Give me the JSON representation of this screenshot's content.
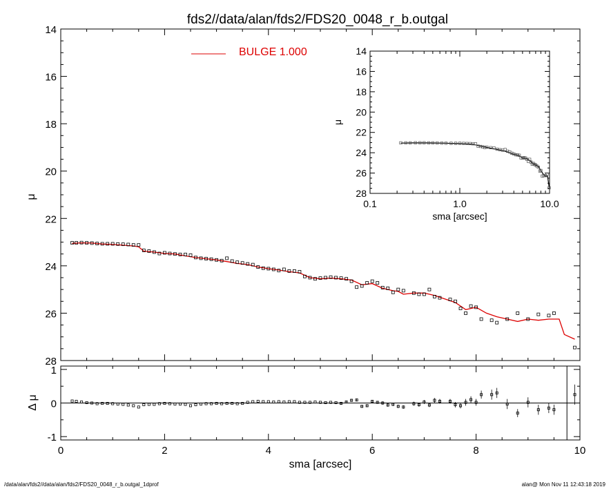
{
  "title": "fds2//data/alan/fds2/FDS20_0048_r_b.outgal",
  "footer": {
    "left": "/data/alan/fds2//data/alan/fds2/FDS20_0048_r_b.outgal_1dprof",
    "right": "alan@  Mon Nov 11 12:43:18 2019"
  },
  "colors": {
    "model": "#dd0000",
    "data": "#000000",
    "residual_line": "#000000"
  },
  "chart_data": [
    {
      "id": "main-profile",
      "type": "line",
      "ylabel": "μ",
      "xlim": [
        0,
        10
      ],
      "ylim": [
        28,
        14
      ],
      "y_inverted": true,
      "xticks": [
        0,
        2,
        4,
        6,
        8,
        10
      ],
      "yticks": [
        14,
        16,
        18,
        20,
        22,
        24,
        26,
        28
      ],
      "legend": {
        "label": "BULGE  1.000",
        "placement": "top-left",
        "color": "#dd0000"
      },
      "series": [
        {
          "name": "BULGE  1.000",
          "color": "#dd0000",
          "x": [
            0.22,
            0.4,
            0.6,
            0.8,
            1.0,
            1.2,
            1.4,
            1.5,
            1.6,
            1.8,
            2.0,
            2.2,
            2.4,
            2.6,
            2.8,
            3.0,
            3.2,
            3.4,
            3.6,
            3.8,
            4.0,
            4.2,
            4.4,
            4.6,
            4.8,
            5.0,
            5.2,
            5.4,
            5.6,
            5.8,
            6.0,
            6.2,
            6.4,
            6.5,
            6.6,
            6.8,
            7.0,
            7.2,
            7.4,
            7.6,
            7.8,
            8.0,
            8.2,
            8.4,
            8.6,
            8.8,
            9.0,
            9.2,
            9.4,
            9.6,
            9.7,
            9.9
          ],
          "y": [
            23.05,
            23.03,
            23.04,
            23.08,
            23.1,
            23.13,
            23.16,
            23.2,
            23.38,
            23.42,
            23.48,
            23.5,
            23.58,
            23.65,
            23.7,
            23.75,
            23.82,
            23.9,
            23.95,
            24.05,
            24.12,
            24.18,
            24.25,
            24.3,
            24.5,
            24.55,
            24.52,
            24.55,
            24.6,
            24.8,
            24.75,
            24.95,
            25.05,
            25.08,
            25.2,
            25.15,
            25.15,
            25.25,
            25.4,
            25.55,
            25.85,
            25.75,
            26.0,
            26.15,
            26.25,
            26.35,
            26.25,
            26.3,
            26.25,
            26.25,
            26.9,
            27.1
          ]
        },
        {
          "name": "",
          "color": "#000000",
          "marker": "square",
          "x": [
            0.22,
            0.3,
            0.4,
            0.5,
            0.6,
            0.7,
            0.8,
            0.9,
            1.0,
            1.1,
            1.2,
            1.3,
            1.4,
            1.5,
            1.6,
            1.7,
            1.8,
            1.9,
            2.0,
            2.1,
            2.2,
            2.3,
            2.4,
            2.5,
            2.6,
            2.7,
            2.8,
            2.9,
            3.0,
            3.1,
            3.2,
            3.3,
            3.4,
            3.5,
            3.6,
            3.7,
            3.8,
            3.9,
            4.0,
            4.1,
            4.2,
            4.3,
            4.4,
            4.5,
            4.6,
            4.7,
            4.8,
            4.9,
            5.0,
            5.1,
            5.2,
            5.3,
            5.4,
            5.5,
            5.6,
            5.7,
            5.8,
            5.9,
            6.0,
            6.1,
            6.2,
            6.3,
            6.4,
            6.5,
            6.6,
            6.8,
            6.9,
            7.0,
            7.1,
            7.2,
            7.3,
            7.5,
            7.6,
            7.7,
            7.8,
            7.9,
            8.0,
            8.1,
            8.3,
            8.4,
            8.6,
            8.8,
            9.0,
            9.2,
            9.4,
            9.5,
            9.9
          ],
          "y": [
            23.03,
            23.03,
            23.02,
            23.03,
            23.04,
            23.06,
            23.07,
            23.07,
            23.07,
            23.08,
            23.09,
            23.1,
            23.12,
            23.12,
            23.35,
            23.38,
            23.42,
            23.48,
            23.45,
            23.48,
            23.5,
            23.52,
            23.52,
            23.55,
            23.65,
            23.68,
            23.7,
            23.72,
            23.75,
            23.78,
            23.68,
            23.8,
            23.85,
            23.88,
            23.92,
            23.95,
            24.05,
            24.1,
            24.12,
            24.15,
            24.2,
            24.15,
            24.22,
            24.22,
            24.25,
            24.45,
            24.5,
            24.55,
            24.52,
            24.5,
            24.48,
            24.5,
            24.52,
            24.55,
            24.65,
            24.9,
            24.85,
            24.72,
            24.65,
            24.72,
            24.92,
            24.95,
            25.12,
            25.0,
            25.05,
            25.15,
            25.2,
            25.2,
            25.0,
            25.3,
            25.35,
            25.42,
            25.5,
            25.8,
            26.0,
            25.7,
            25.75,
            26.25,
            26.3,
            26.4,
            26.25,
            26.0,
            26.25,
            26.05,
            26.1,
            26.0,
            27.45
          ]
        }
      ]
    },
    {
      "id": "residual",
      "type": "scatter",
      "ylabel": "Δ μ",
      "xlabel": "sma [arcsec]",
      "xlim": [
        0,
        10
      ],
      "ylim": [
        -1.1,
        1.1
      ],
      "xticks": [
        0,
        2,
        4,
        6,
        8,
        10
      ],
      "yticks": [
        -1,
        0,
        1
      ],
      "vline_x": 9.75,
      "series": [
        {
          "name": "",
          "color": "#000000",
          "marker": "square",
          "x": [
            0.22,
            0.3,
            0.4,
            0.5,
            0.6,
            0.7,
            0.8,
            0.9,
            1.0,
            1.1,
            1.2,
            1.3,
            1.4,
            1.5,
            1.6,
            1.7,
            1.8,
            1.9,
            2.0,
            2.1,
            2.2,
            2.3,
            2.4,
            2.5,
            2.6,
            2.7,
            2.8,
            2.9,
            3.0,
            3.1,
            3.2,
            3.3,
            3.4,
            3.5,
            3.6,
            3.7,
            3.8,
            3.9,
            4.0,
            4.1,
            4.2,
            4.3,
            4.4,
            4.5,
            4.6,
            4.7,
            4.8,
            4.9,
            5.0,
            5.1,
            5.2,
            5.3,
            5.4,
            5.5,
            5.6,
            5.7,
            5.8,
            5.9,
            6.0,
            6.1,
            6.2,
            6.3,
            6.4,
            6.5,
            6.6,
            6.8,
            6.9,
            7.0,
            7.1,
            7.2,
            7.3,
            7.5,
            7.6,
            7.7,
            7.8,
            7.9,
            8.0,
            8.1,
            8.3,
            8.4,
            8.6,
            8.8,
            9.0,
            9.2,
            9.4,
            9.5,
            9.9
          ],
          "y": [
            0.06,
            0.05,
            0.03,
            0.01,
            0.0,
            -0.02,
            -0.01,
            -0.01,
            -0.02,
            -0.03,
            -0.04,
            -0.06,
            -0.08,
            -0.12,
            -0.05,
            -0.04,
            -0.04,
            -0.02,
            -0.01,
            -0.02,
            -0.03,
            -0.03,
            -0.04,
            -0.08,
            -0.05,
            -0.03,
            -0.02,
            -0.02,
            -0.01,
            -0.02,
            -0.01,
            -0.01,
            -0.02,
            -0.01,
            0.02,
            0.04,
            0.05,
            0.04,
            0.04,
            0.03,
            0.04,
            0.03,
            0.04,
            0.04,
            0.02,
            0.02,
            0.02,
            0.03,
            0.02,
            0.01,
            0.02,
            0.01,
            -0.01,
            0.03,
            0.08,
            0.09,
            -0.1,
            -0.08,
            0.05,
            0.02,
            0.0,
            -0.06,
            -0.04,
            -0.1,
            -0.12,
            -0.02,
            -0.05,
            0.03,
            -0.06,
            0.08,
            0.05,
            0.05,
            -0.05,
            -0.08,
            0.02,
            0.1,
            0.02,
            0.25,
            0.25,
            0.3,
            -0.03,
            -0.3,
            0.02,
            -0.2,
            -0.15,
            -0.2,
            0.25
          ],
          "err": [
            0.02,
            0.02,
            0.02,
            0.02,
            0.02,
            0.02,
            0.02,
            0.02,
            0.02,
            0.02,
            0.02,
            0.02,
            0.02,
            0.02,
            0.02,
            0.02,
            0.02,
            0.02,
            0.02,
            0.02,
            0.02,
            0.02,
            0.02,
            0.02,
            0.02,
            0.02,
            0.02,
            0.02,
            0.02,
            0.02,
            0.02,
            0.02,
            0.02,
            0.02,
            0.02,
            0.02,
            0.02,
            0.02,
            0.03,
            0.03,
            0.03,
            0.03,
            0.03,
            0.03,
            0.03,
            0.03,
            0.03,
            0.03,
            0.03,
            0.03,
            0.03,
            0.03,
            0.04,
            0.04,
            0.04,
            0.04,
            0.04,
            0.04,
            0.04,
            0.04,
            0.05,
            0.05,
            0.05,
            0.05,
            0.05,
            0.06,
            0.06,
            0.06,
            0.06,
            0.07,
            0.07,
            0.07,
            0.08,
            0.08,
            0.1,
            0.1,
            0.1,
            0.12,
            0.15,
            0.15,
            0.15,
            0.12,
            0.15,
            0.15,
            0.15,
            0.15,
            0.3
          ]
        }
      ]
    },
    {
      "id": "inset-log",
      "type": "line",
      "ylabel": "μ",
      "xlabel": "sma [arcsec]",
      "x_scale": "log",
      "xlim": [
        0.1,
        10.0
      ],
      "ylim": [
        28,
        14
      ],
      "y_inverted": true,
      "xticks": [
        0.1,
        1.0,
        10.0
      ],
      "xtick_labels": [
        "0.1",
        "1.0",
        "10.0"
      ],
      "yticks": [
        14,
        16,
        18,
        20,
        22,
        24,
        26,
        28
      ],
      "series": [
        {
          "name": "",
          "color": "#000000",
          "x": [
            0.22,
            0.3,
            0.4,
            0.5,
            0.6,
            0.7,
            0.8,
            1.0,
            1.2,
            1.4,
            1.6,
            1.8,
            2.0,
            2.3,
            2.6,
            3.0,
            3.4,
            3.8,
            4.2,
            4.6,
            5.0,
            5.5,
            6.0,
            6.5,
            7.0,
            7.5,
            8.0,
            8.5,
            9.0,
            9.5,
            9.9
          ],
          "y": [
            23.05,
            23.03,
            23.03,
            23.04,
            23.05,
            23.06,
            23.08,
            23.1,
            23.13,
            23.16,
            23.3,
            23.4,
            23.48,
            23.58,
            23.68,
            23.78,
            23.92,
            24.1,
            24.2,
            24.3,
            24.52,
            24.55,
            24.75,
            25.05,
            25.2,
            25.35,
            25.75,
            26.1,
            26.3,
            26.3,
            27.4
          ]
        },
        {
          "name": "",
          "color": "#000000",
          "marker": "square",
          "x": [
            0.22,
            0.25,
            0.28,
            0.32,
            0.36,
            0.4,
            0.45,
            0.5,
            0.56,
            0.63,
            0.7,
            0.8,
            0.9,
            1.0,
            1.1,
            1.2,
            1.3,
            1.4,
            1.5,
            1.6,
            1.7,
            1.8,
            1.9,
            2.0,
            2.2,
            2.4,
            2.6,
            2.8,
            3.0,
            3.2,
            3.4,
            3.6,
            3.8,
            4.0,
            4.2,
            4.4,
            4.6,
            4.8,
            5.0,
            5.2,
            5.4,
            5.6,
            5.8,
            6.0,
            6.2,
            6.4,
            6.6,
            6.8,
            7.0,
            7.2,
            7.5,
            7.8,
            8.0,
            8.3,
            8.6,
            9.0,
            9.4,
            9.9
          ],
          "y": [
            23.03,
            23.03,
            23.03,
            23.02,
            23.02,
            23.02,
            23.03,
            23.03,
            23.04,
            23.05,
            23.06,
            23.07,
            23.07,
            23.07,
            23.08,
            23.09,
            23.1,
            23.12,
            23.12,
            23.35,
            23.38,
            23.42,
            23.48,
            23.45,
            23.5,
            23.52,
            23.65,
            23.7,
            23.75,
            23.68,
            23.85,
            23.92,
            24.05,
            24.12,
            24.2,
            24.22,
            24.25,
            24.5,
            24.52,
            24.48,
            24.52,
            24.65,
            24.85,
            24.65,
            24.92,
            25.12,
            25.05,
            25.15,
            25.2,
            25.3,
            25.42,
            25.8,
            25.75,
            26.3,
            26.25,
            26.25,
            26.1,
            27.45
          ]
        }
      ]
    }
  ]
}
